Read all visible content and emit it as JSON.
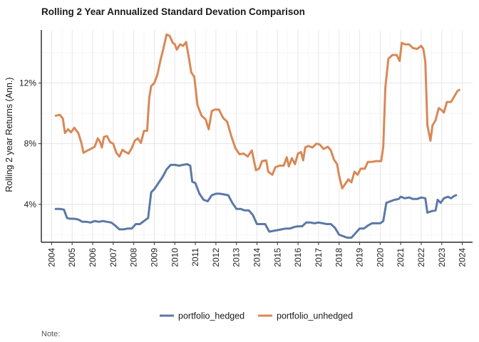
{
  "chart_data": {
    "type": "line",
    "title": "Rolling 2 Year Annualized Standard Devation Comparison",
    "xlabel": "",
    "ylabel": "Rolling 2 year Returns (Ann.)",
    "xlim": [
      2003.5,
      2024.5
    ],
    "ylim": [
      0.015,
      0.155
    ],
    "x_ticks": [
      2004,
      2005,
      2006,
      2007,
      2008,
      2009,
      2010,
      2011,
      2012,
      2013,
      2014,
      2015,
      2016,
      2017,
      2018,
      2019,
      2020,
      2021,
      2022,
      2023,
      2024
    ],
    "y_ticks": [
      0.04,
      0.08,
      0.12
    ],
    "y_tick_labels": [
      "4%",
      "8%",
      "12%"
    ],
    "grid": true,
    "legend_position": "bottom",
    "caption": "Note:",
    "series": [
      {
        "name": "portfolio_hedged",
        "color": "#5b79a6",
        "points": [
          [
            2004.2,
            0.037
          ],
          [
            2004.4,
            0.037
          ],
          [
            2004.6,
            0.0365
          ],
          [
            2004.75,
            0.031
          ],
          [
            2004.9,
            0.0305
          ],
          [
            2005.1,
            0.0305
          ],
          [
            2005.3,
            0.03
          ],
          [
            2005.5,
            0.0285
          ],
          [
            2005.7,
            0.0285
          ],
          [
            2005.9,
            0.028
          ],
          [
            2006.1,
            0.029
          ],
          [
            2006.3,
            0.0285
          ],
          [
            2006.5,
            0.029
          ],
          [
            2006.7,
            0.0285
          ],
          [
            2006.9,
            0.028
          ],
          [
            2007.1,
            0.026
          ],
          [
            2007.3,
            0.0235
          ],
          [
            2007.5,
            0.0235
          ],
          [
            2007.7,
            0.024
          ],
          [
            2007.9,
            0.024
          ],
          [
            2008.1,
            0.027
          ],
          [
            2008.3,
            0.027
          ],
          [
            2008.5,
            0.029
          ],
          [
            2008.7,
            0.031
          ],
          [
            2008.85,
            0.048
          ],
          [
            2009.0,
            0.05
          ],
          [
            2009.2,
            0.054
          ],
          [
            2009.4,
            0.058
          ],
          [
            2009.6,
            0.063
          ],
          [
            2009.8,
            0.066
          ],
          [
            2010.0,
            0.066
          ],
          [
            2010.2,
            0.0655
          ],
          [
            2010.4,
            0.066
          ],
          [
            2010.6,
            0.0665
          ],
          [
            2010.75,
            0.0655
          ],
          [
            2010.85,
            0.055
          ],
          [
            2011.0,
            0.054
          ],
          [
            2011.2,
            0.047
          ],
          [
            2011.4,
            0.043
          ],
          [
            2011.6,
            0.042
          ],
          [
            2011.8,
            0.046
          ],
          [
            2012.0,
            0.047
          ],
          [
            2012.2,
            0.047
          ],
          [
            2012.4,
            0.0465
          ],
          [
            2012.6,
            0.046
          ],
          [
            2012.8,
            0.041
          ],
          [
            2013.0,
            0.037
          ],
          [
            2013.2,
            0.037
          ],
          [
            2013.4,
            0.036
          ],
          [
            2013.6,
            0.036
          ],
          [
            2013.8,
            0.033
          ],
          [
            2014.0,
            0.027
          ],
          [
            2014.2,
            0.027
          ],
          [
            2014.4,
            0.027
          ],
          [
            2014.6,
            0.022
          ],
          [
            2014.8,
            0.0225
          ],
          [
            2015.0,
            0.023
          ],
          [
            2015.2,
            0.0235
          ],
          [
            2015.4,
            0.024
          ],
          [
            2015.6,
            0.024
          ],
          [
            2015.8,
            0.025
          ],
          [
            2016.0,
            0.0255
          ],
          [
            2016.2,
            0.0255
          ],
          [
            2016.4,
            0.028
          ],
          [
            2016.6,
            0.028
          ],
          [
            2016.8,
            0.0275
          ],
          [
            2017.0,
            0.028
          ],
          [
            2017.2,
            0.0275
          ],
          [
            2017.4,
            0.027
          ],
          [
            2017.6,
            0.027
          ],
          [
            2017.8,
            0.0245
          ],
          [
            2018.0,
            0.02
          ],
          [
            2018.2,
            0.019
          ],
          [
            2018.4,
            0.018
          ],
          [
            2018.6,
            0.018
          ],
          [
            2018.8,
            0.021
          ],
          [
            2019.0,
            0.024
          ],
          [
            2019.2,
            0.024
          ],
          [
            2019.4,
            0.026
          ],
          [
            2019.6,
            0.0275
          ],
          [
            2019.8,
            0.0275
          ],
          [
            2020.0,
            0.0275
          ],
          [
            2020.15,
            0.029
          ],
          [
            2020.3,
            0.041
          ],
          [
            2020.5,
            0.042
          ],
          [
            2020.7,
            0.043
          ],
          [
            2020.9,
            0.0435
          ],
          [
            2021.0,
            0.045
          ],
          [
            2021.2,
            0.044
          ],
          [
            2021.4,
            0.0445
          ],
          [
            2021.6,
            0.0435
          ],
          [
            2021.8,
            0.0435
          ],
          [
            2022.0,
            0.0445
          ],
          [
            2022.2,
            0.044
          ],
          [
            2022.3,
            0.0345
          ],
          [
            2022.5,
            0.0355
          ],
          [
            2022.7,
            0.036
          ],
          [
            2022.8,
            0.043
          ],
          [
            2022.95,
            0.041
          ],
          [
            2023.1,
            0.044
          ],
          [
            2023.3,
            0.045
          ],
          [
            2023.45,
            0.044
          ],
          [
            2023.6,
            0.0455
          ],
          [
            2023.7,
            0.046
          ]
        ]
      },
      {
        "name": "portfolio_unhedged",
        "color": "#d98857",
        "points": [
          [
            2004.2,
            0.0985
          ],
          [
            2004.4,
            0.099
          ],
          [
            2004.55,
            0.0965
          ],
          [
            2004.65,
            0.087
          ],
          [
            2004.8,
            0.0895
          ],
          [
            2004.95,
            0.0875
          ],
          [
            2005.1,
            0.0905
          ],
          [
            2005.3,
            0.087
          ],
          [
            2005.45,
            0.0805
          ],
          [
            2005.55,
            0.074
          ],
          [
            2005.75,
            0.0755
          ],
          [
            2005.9,
            0.0765
          ],
          [
            2006.1,
            0.078
          ],
          [
            2006.25,
            0.0835
          ],
          [
            2006.35,
            0.0815
          ],
          [
            2006.45,
            0.0775
          ],
          [
            2006.55,
            0.0845
          ],
          [
            2006.7,
            0.085
          ],
          [
            2006.85,
            0.081
          ],
          [
            2007.0,
            0.08
          ],
          [
            2007.15,
            0.074
          ],
          [
            2007.3,
            0.0715
          ],
          [
            2007.45,
            0.076
          ],
          [
            2007.6,
            0.0745
          ],
          [
            2007.75,
            0.0735
          ],
          [
            2007.9,
            0.077
          ],
          [
            2008.05,
            0.082
          ],
          [
            2008.2,
            0.0835
          ],
          [
            2008.35,
            0.0805
          ],
          [
            2008.5,
            0.0885
          ],
          [
            2008.65,
            0.0885
          ],
          [
            2008.75,
            0.11
          ],
          [
            2008.85,
            0.118
          ],
          [
            2009.0,
            0.12
          ],
          [
            2009.15,
            0.1255
          ],
          [
            2009.3,
            0.135
          ],
          [
            2009.45,
            0.143
          ],
          [
            2009.6,
            0.152
          ],
          [
            2009.75,
            0.151
          ],
          [
            2009.9,
            0.1465
          ],
          [
            2010.0,
            0.1455
          ],
          [
            2010.1,
            0.142
          ],
          [
            2010.25,
            0.1455
          ],
          [
            2010.4,
            0.1445
          ],
          [
            2010.55,
            0.147
          ],
          [
            2010.7,
            0.1355
          ],
          [
            2010.8,
            0.127
          ],
          [
            2010.95,
            0.124
          ],
          [
            2011.1,
            0.1055
          ],
          [
            2011.3,
            0.0985
          ],
          [
            2011.5,
            0.096
          ],
          [
            2011.65,
            0.0895
          ],
          [
            2011.8,
            0.1015
          ],
          [
            2011.95,
            0.1025
          ],
          [
            2012.15,
            0.1025
          ],
          [
            2012.35,
            0.097
          ],
          [
            2012.55,
            0.0945
          ],
          [
            2012.75,
            0.085
          ],
          [
            2012.95,
            0.077
          ],
          [
            2013.15,
            0.073
          ],
          [
            2013.35,
            0.0735
          ],
          [
            2013.55,
            0.0715
          ],
          [
            2013.75,
            0.0755
          ],
          [
            2013.85,
            0.069
          ],
          [
            2013.95,
            0.0625
          ],
          [
            2014.1,
            0.0635
          ],
          [
            2014.25,
            0.0685
          ],
          [
            2014.45,
            0.069
          ],
          [
            2014.55,
            0.0615
          ],
          [
            2014.75,
            0.0595
          ],
          [
            2014.9,
            0.0645
          ],
          [
            2015.1,
            0.0655
          ],
          [
            2015.3,
            0.0655
          ],
          [
            2015.45,
            0.071
          ],
          [
            2015.55,
            0.065
          ],
          [
            2015.7,
            0.0705
          ],
          [
            2015.85,
            0.0665
          ],
          [
            2016.0,
            0.0735
          ],
          [
            2016.15,
            0.0745
          ],
          [
            2016.25,
            0.069
          ],
          [
            2016.35,
            0.0775
          ],
          [
            2016.5,
            0.0785
          ],
          [
            2016.7,
            0.0775
          ],
          [
            2016.9,
            0.08
          ],
          [
            2017.05,
            0.0795
          ],
          [
            2017.25,
            0.0765
          ],
          [
            2017.45,
            0.078
          ],
          [
            2017.6,
            0.0755
          ],
          [
            2017.75,
            0.0695
          ],
          [
            2017.9,
            0.0665
          ],
          [
            2018.0,
            0.059
          ],
          [
            2018.15,
            0.0505
          ],
          [
            2018.3,
            0.0535
          ],
          [
            2018.45,
            0.0565
          ],
          [
            2018.6,
            0.0545
          ],
          [
            2018.75,
            0.0615
          ],
          [
            2018.9,
            0.0595
          ],
          [
            2019.05,
            0.0635
          ],
          [
            2019.25,
            0.0635
          ],
          [
            2019.4,
            0.068
          ],
          [
            2019.6,
            0.068
          ],
          [
            2019.8,
            0.0685
          ],
          [
            2020.05,
            0.0685
          ],
          [
            2020.15,
            0.078
          ],
          [
            2020.25,
            0.117
          ],
          [
            2020.4,
            0.136
          ],
          [
            2020.6,
            0.1385
          ],
          [
            2020.8,
            0.1385
          ],
          [
            2020.95,
            0.1345
          ],
          [
            2021.05,
            0.1465
          ],
          [
            2021.2,
            0.1455
          ],
          [
            2021.4,
            0.1455
          ],
          [
            2021.6,
            0.143
          ],
          [
            2021.8,
            0.1425
          ],
          [
            2022.0,
            0.1445
          ],
          [
            2022.1,
            0.1425
          ],
          [
            2022.2,
            0.134
          ],
          [
            2022.3,
            0.092
          ],
          [
            2022.45,
            0.082
          ],
          [
            2022.55,
            0.092
          ],
          [
            2022.7,
            0.0955
          ],
          [
            2022.85,
            0.1035
          ],
          [
            2023.0,
            0.102
          ],
          [
            2023.1,
            0.1005
          ],
          [
            2023.25,
            0.1075
          ],
          [
            2023.45,
            0.1075
          ],
          [
            2023.6,
            0.111
          ],
          [
            2023.75,
            0.1145
          ],
          [
            2023.85,
            0.1155
          ]
        ]
      }
    ]
  }
}
